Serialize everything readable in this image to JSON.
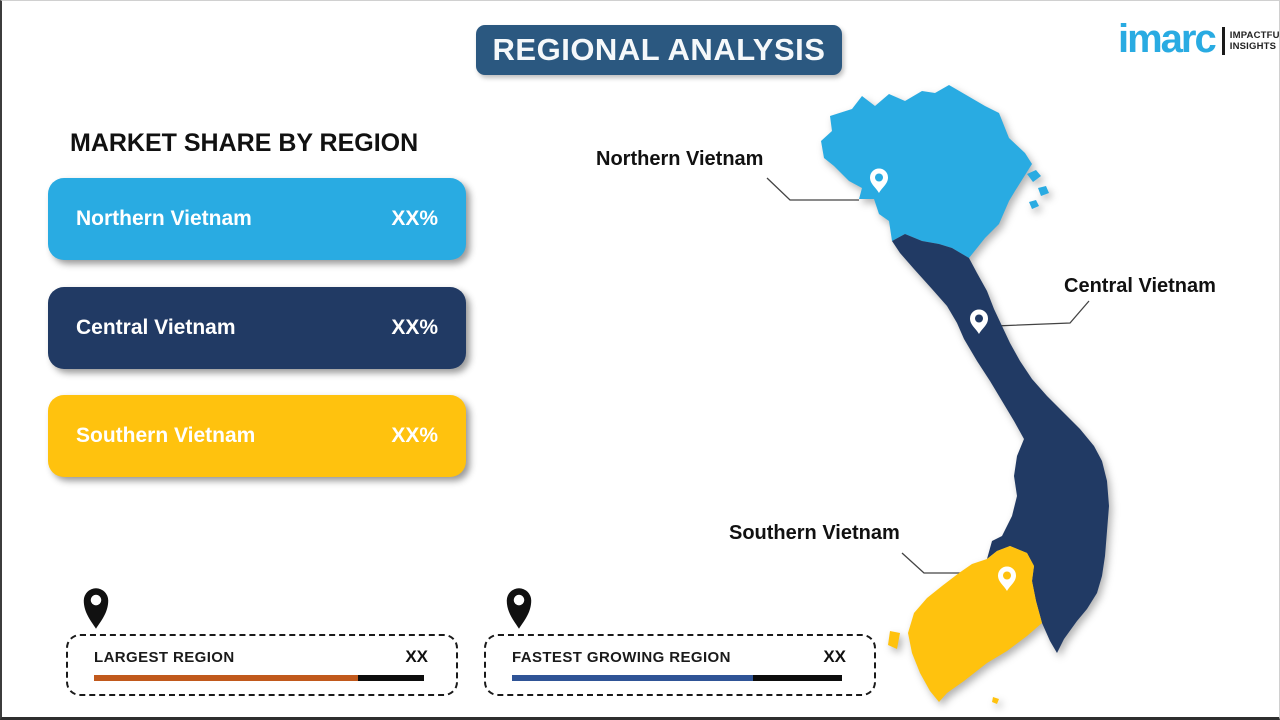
{
  "header": {
    "title": "REGIONAL ANALYSIS"
  },
  "logo": {
    "brand": "imarc",
    "tagline_line1": "IMPACTFUL",
    "tagline_line2": "INSIGHTS",
    "brand_color": "#29ABE2"
  },
  "market_share": {
    "heading": "MARKET SHARE BY REGION",
    "regions": [
      {
        "label": "Northern Vietnam",
        "value": "XX%",
        "color": "#29ABE2"
      },
      {
        "label": "Central Vietnam",
        "value": "XX%",
        "color": "#213A64"
      },
      {
        "label": "Southern Vietnam",
        "value": "XX%",
        "color": "#FFC20E"
      }
    ]
  },
  "map": {
    "labels": [
      {
        "text": "Northern Vietnam"
      },
      {
        "text": "Central Vietnam"
      },
      {
        "text": "Southern Vietnam"
      }
    ],
    "region_colors": {
      "northern": "#29ABE2",
      "central": "#213A64",
      "southern": "#FFC20E"
    }
  },
  "legend": {
    "items": [
      {
        "label": "LARGEST REGION",
        "value": "XX",
        "bar_color": "#C1591C",
        "bar_fill_pct": 80
      },
      {
        "label": "FASTEST GROWING REGION",
        "value": "XX",
        "bar_color": "#2F5496",
        "bar_fill_pct": 73
      }
    ]
  },
  "chart_data": {
    "type": "table",
    "title": "MARKET SHARE BY REGION",
    "categories": [
      "Northern Vietnam",
      "Central Vietnam",
      "Southern Vietnam"
    ],
    "values": [
      "XX%",
      "XX%",
      "XX%"
    ],
    "notes": [
      "LARGEST REGION: XX",
      "FASTEST GROWING REGION: XX"
    ]
  }
}
